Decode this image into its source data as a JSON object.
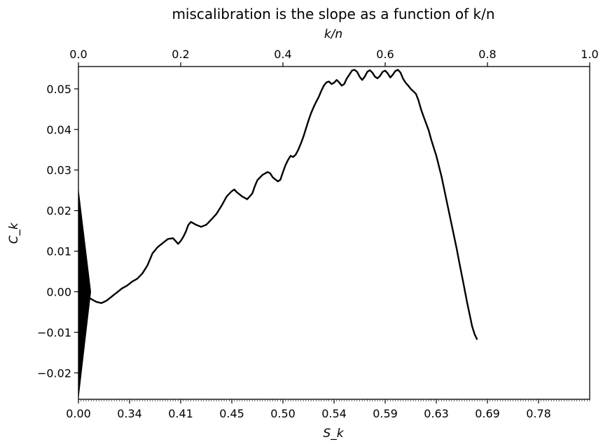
{
  "chart_data": {
    "type": "line",
    "title": "miscalibration is the slope as a function of k/n",
    "xlabel": "S_k",
    "ylabel": "C_k",
    "top_xlabel": "k/n",
    "xlim": [
      0,
      1
    ],
    "ylim": [
      -0.0265,
      0.0555
    ],
    "grid": false,
    "legend": "none",
    "top_ticks": [
      {
        "value": 0.0,
        "label": "0.0"
      },
      {
        "value": 0.2,
        "label": "0.2"
      },
      {
        "value": 0.4,
        "label": "0.4"
      },
      {
        "value": 0.6,
        "label": "0.6"
      },
      {
        "value": 0.8,
        "label": "0.8"
      },
      {
        "value": 1.0,
        "label": "1.0"
      }
    ],
    "bottom_ticks": [
      {
        "value": 0.0,
        "label": "0.00"
      },
      {
        "value": 0.1,
        "label": "0.34"
      },
      {
        "value": 0.2,
        "label": "0.41"
      },
      {
        "value": 0.3,
        "label": "0.45"
      },
      {
        "value": 0.4,
        "label": "0.50"
      },
      {
        "value": 0.5,
        "label": "0.54"
      },
      {
        "value": 0.6,
        "label": "0.59"
      },
      {
        "value": 0.7,
        "label": "0.63"
      },
      {
        "value": 0.8,
        "label": "0.69"
      },
      {
        "value": 0.9,
        "label": "0.78"
      }
    ],
    "y_ticks": [
      {
        "value": 0.05,
        "label": "0.05"
      },
      {
        "value": 0.04,
        "label": "0.04"
      },
      {
        "value": 0.03,
        "label": "0.03"
      },
      {
        "value": 0.02,
        "label": "0.02"
      },
      {
        "value": 0.01,
        "label": "0.01"
      },
      {
        "value": 0.0,
        "label": "0.00"
      },
      {
        "value": -0.01,
        "label": "−0.01"
      },
      {
        "value": -0.02,
        "label": "−0.02"
      }
    ],
    "triangle": {
      "x_left": 0.0,
      "x_right": 0.024,
      "y_top": 0.025,
      "y_mid": 0.0,
      "y_bottom": -0.026
    },
    "series": [
      {
        "values": [
          [
            0.0,
            0.0
          ],
          [
            0.008,
            -0.0005
          ],
          [
            0.015,
            -0.001
          ],
          [
            0.025,
            -0.0018
          ],
          [
            0.035,
            -0.0025
          ],
          [
            0.045,
            -0.0028
          ],
          [
            0.055,
            -0.0022
          ],
          [
            0.065,
            -0.0012
          ],
          [
            0.075,
            -0.0002
          ],
          [
            0.085,
            0.0008
          ],
          [
            0.095,
            0.0015
          ],
          [
            0.105,
            0.0025
          ],
          [
            0.115,
            0.0032
          ],
          [
            0.125,
            0.0045
          ],
          [
            0.135,
            0.0065
          ],
          [
            0.145,
            0.0095
          ],
          [
            0.155,
            0.011
          ],
          [
            0.165,
            0.012
          ],
          [
            0.175,
            0.013
          ],
          [
            0.185,
            0.0132
          ],
          [
            0.19,
            0.0125
          ],
          [
            0.195,
            0.0118
          ],
          [
            0.2,
            0.0125
          ],
          [
            0.205,
            0.0135
          ],
          [
            0.21,
            0.0148
          ],
          [
            0.215,
            0.0165
          ],
          [
            0.22,
            0.0172
          ],
          [
            0.23,
            0.0165
          ],
          [
            0.24,
            0.016
          ],
          [
            0.25,
            0.0165
          ],
          [
            0.26,
            0.0178
          ],
          [
            0.27,
            0.0192
          ],
          [
            0.28,
            0.0212
          ],
          [
            0.29,
            0.0235
          ],
          [
            0.3,
            0.0248
          ],
          [
            0.305,
            0.0252
          ],
          [
            0.31,
            0.0245
          ],
          [
            0.32,
            0.0235
          ],
          [
            0.33,
            0.0228
          ],
          [
            0.34,
            0.0242
          ],
          [
            0.345,
            0.026
          ],
          [
            0.35,
            0.0275
          ],
          [
            0.36,
            0.0288
          ],
          [
            0.37,
            0.0295
          ],
          [
            0.375,
            0.0292
          ],
          [
            0.38,
            0.0282
          ],
          [
            0.39,
            0.0272
          ],
          [
            0.395,
            0.0276
          ],
          [
            0.4,
            0.0295
          ],
          [
            0.405,
            0.0312
          ],
          [
            0.41,
            0.0325
          ],
          [
            0.415,
            0.0335
          ],
          [
            0.42,
            0.0332
          ],
          [
            0.425,
            0.0338
          ],
          [
            0.43,
            0.035
          ],
          [
            0.435,
            0.0365
          ],
          [
            0.44,
            0.0382
          ],
          [
            0.445,
            0.0402
          ],
          [
            0.45,
            0.0422
          ],
          [
            0.455,
            0.044
          ],
          [
            0.46,
            0.0455
          ],
          [
            0.465,
            0.0468
          ],
          [
            0.47,
            0.048
          ],
          [
            0.475,
            0.0495
          ],
          [
            0.48,
            0.0508
          ],
          [
            0.485,
            0.0516
          ],
          [
            0.49,
            0.0518
          ],
          [
            0.495,
            0.0512
          ],
          [
            0.5,
            0.0515
          ],
          [
            0.505,
            0.0522
          ],
          [
            0.51,
            0.0516
          ],
          [
            0.515,
            0.0508
          ],
          [
            0.52,
            0.0512
          ],
          [
            0.525,
            0.0526
          ],
          [
            0.53,
            0.0535
          ],
          [
            0.535,
            0.0545
          ],
          [
            0.54,
            0.0547
          ],
          [
            0.545,
            0.0542
          ],
          [
            0.55,
            0.053
          ],
          [
            0.555,
            0.0522
          ],
          [
            0.56,
            0.053
          ],
          [
            0.565,
            0.0542
          ],
          [
            0.57,
            0.0546
          ],
          [
            0.575,
            0.054
          ],
          [
            0.58,
            0.053
          ],
          [
            0.585,
            0.0526
          ],
          [
            0.59,
            0.0532
          ],
          [
            0.595,
            0.0542
          ],
          [
            0.6,
            0.0545
          ],
          [
            0.605,
            0.0538
          ],
          [
            0.61,
            0.0528
          ],
          [
            0.615,
            0.0535
          ],
          [
            0.62,
            0.0544
          ],
          [
            0.625,
            0.0547
          ],
          [
            0.63,
            0.054
          ],
          [
            0.635,
            0.0525
          ],
          [
            0.64,
            0.0515
          ],
          [
            0.645,
            0.0508
          ],
          [
            0.65,
            0.05
          ],
          [
            0.66,
            0.0488
          ],
          [
            0.665,
            0.0472
          ],
          [
            0.67,
            0.045
          ],
          [
            0.675,
            0.0432
          ],
          [
            0.68,
            0.0415
          ],
          [
            0.685,
            0.0398
          ],
          [
            0.69,
            0.0375
          ],
          [
            0.695,
            0.0355
          ],
          [
            0.7,
            0.0335
          ],
          [
            0.705,
            0.031
          ],
          [
            0.71,
            0.0285
          ],
          [
            0.715,
            0.0255
          ],
          [
            0.72,
            0.0225
          ],
          [
            0.725,
            0.0195
          ],
          [
            0.73,
            0.0165
          ],
          [
            0.735,
            0.0135
          ],
          [
            0.74,
            0.0105
          ],
          [
            0.745,
            0.0072
          ],
          [
            0.75,
            0.004
          ],
          [
            0.755,
            0.0008
          ],
          [
            0.76,
            -0.0025
          ],
          [
            0.765,
            -0.0055
          ],
          [
            0.77,
            -0.0085
          ],
          [
            0.775,
            -0.0105
          ],
          [
            0.78,
            -0.0118
          ]
        ]
      }
    ]
  }
}
